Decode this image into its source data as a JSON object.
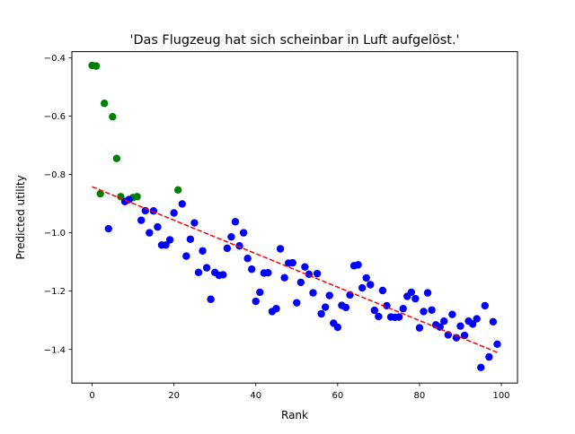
{
  "chart_data": {
    "type": "scatter",
    "title": "'Das Flugzeug hat sich scheinbar in Luft aufgelöst.'",
    "xlabel": "Rank",
    "ylabel": "Predicted utility",
    "xlim": [
      -4.95,
      103.95
    ],
    "ylim": [
      -1.5154,
      -0.3787
    ],
    "xticks": [
      0,
      20,
      40,
      60,
      80,
      100
    ],
    "xtick_labels": [
      "0",
      "20",
      "40",
      "60",
      "80",
      "100"
    ],
    "yticks": [
      -1.4,
      -1.2,
      -1.0,
      -0.8,
      -0.6,
      -0.4
    ],
    "ytick_labels": [
      "−1.4",
      "−1.2",
      "−1.0",
      "−0.8",
      "−0.6",
      "−0.4"
    ],
    "grid": false,
    "series": [
      {
        "color": "#008000",
        "points": [
          [
            0,
            -0.426
          ],
          [
            1,
            -0.428
          ],
          [
            2,
            -0.866
          ],
          [
            3,
            -0.556
          ],
          [
            5,
            -0.602
          ],
          [
            6,
            -0.745
          ],
          [
            7,
            -0.876
          ],
          [
            10,
            -0.879
          ],
          [
            11,
            -0.876
          ],
          [
            21,
            -0.853
          ]
        ]
      },
      {
        "color": "#0000ff",
        "points": [
          [
            4,
            -0.986
          ],
          [
            8,
            -0.893
          ],
          [
            9,
            -0.886
          ],
          [
            12,
            -0.957
          ],
          [
            13,
            -0.924
          ],
          [
            14,
            -1.0
          ],
          [
            15,
            -0.925
          ],
          [
            16,
            -0.98
          ],
          [
            17,
            -1.042
          ],
          [
            18,
            -1.042
          ],
          [
            19,
            -1.024
          ],
          [
            20,
            -0.932
          ],
          [
            22,
            -0.901
          ],
          [
            23,
            -1.08
          ],
          [
            24,
            -1.022
          ],
          [
            25,
            -0.966
          ],
          [
            26,
            -1.136
          ],
          [
            27,
            -1.062
          ],
          [
            28,
            -1.12
          ],
          [
            29,
            -1.228
          ],
          [
            30,
            -1.136
          ],
          [
            31,
            -1.146
          ],
          [
            32,
            -1.144
          ],
          [
            33,
            -1.053
          ],
          [
            34,
            -1.014
          ],
          [
            35,
            -0.962
          ],
          [
            36,
            -1.045
          ],
          [
            37,
            -1.0
          ],
          [
            38,
            -1.088
          ],
          [
            39,
            -1.125
          ],
          [
            40,
            -1.235
          ],
          [
            41,
            -1.204
          ],
          [
            42,
            -1.138
          ],
          [
            43,
            -1.137
          ],
          [
            44,
            -1.27
          ],
          [
            45,
            -1.26
          ],
          [
            46,
            -1.055
          ],
          [
            47,
            -1.154
          ],
          [
            48,
            -1.104
          ],
          [
            49,
            -1.103
          ],
          [
            50,
            -1.24
          ],
          [
            51,
            -1.17
          ],
          [
            52,
            -1.117
          ],
          [
            53,
            -1.142
          ],
          [
            54,
            -1.206
          ],
          [
            55,
            -1.14
          ],
          [
            56,
            -1.278
          ],
          [
            57,
            -1.255
          ],
          [
            58,
            -1.215
          ],
          [
            59,
            -1.31
          ],
          [
            60,
            -1.324
          ],
          [
            61,
            -1.249
          ],
          [
            62,
            -1.256
          ],
          [
            63,
            -1.213
          ],
          [
            64,
            -1.113
          ],
          [
            65,
            -1.11
          ],
          [
            66,
            -1.189
          ],
          [
            67,
            -1.155
          ],
          [
            68,
            -1.178
          ],
          [
            69,
            -1.266
          ],
          [
            70,
            -1.287
          ],
          [
            71,
            -1.198
          ],
          [
            72,
            -1.25
          ],
          [
            73,
            -1.289
          ],
          [
            74,
            -1.29
          ],
          [
            75,
            -1.289
          ],
          [
            76,
            -1.26
          ],
          [
            77,
            -1.218
          ],
          [
            78,
            -1.204
          ],
          [
            79,
            -1.226
          ],
          [
            80,
            -1.326
          ],
          [
            81,
            -1.27
          ],
          [
            82,
            -1.206
          ],
          [
            83,
            -1.265
          ],
          [
            84,
            -1.316
          ],
          [
            85,
            -1.323
          ],
          [
            86,
            -1.303
          ],
          [
            87,
            -1.35
          ],
          [
            88,
            -1.28
          ],
          [
            89,
            -1.36
          ],
          [
            90,
            -1.32
          ],
          [
            91,
            -1.352
          ],
          [
            92,
            -1.303
          ],
          [
            93,
            -1.313
          ],
          [
            94,
            -1.295
          ],
          [
            95,
            -1.462
          ],
          [
            96,
            -1.25
          ],
          [
            97,
            -1.426
          ],
          [
            98,
            -1.305
          ],
          [
            99,
            -1.382
          ]
        ]
      }
    ],
    "trendline": {
      "style": "dashed",
      "color": "#ff0000",
      "x": [
        0,
        99
      ],
      "y": [
        -0.842,
        -1.41
      ]
    }
  }
}
